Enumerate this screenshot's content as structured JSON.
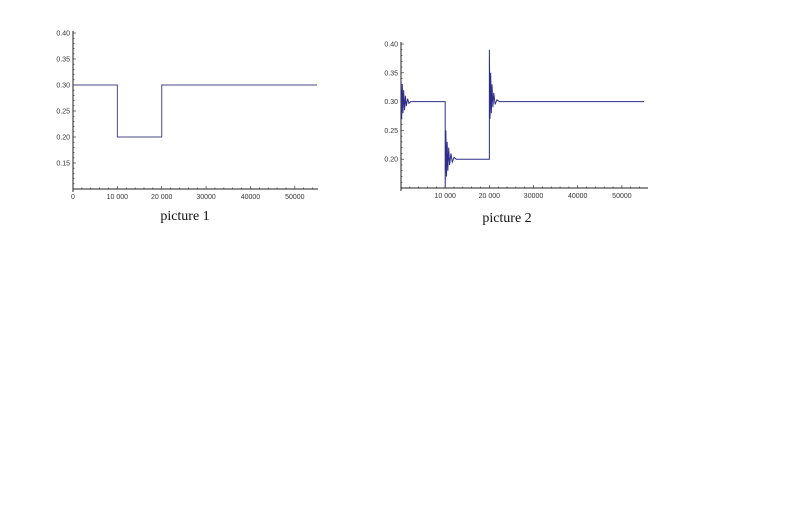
{
  "chart_data": [
    {
      "type": "line",
      "caption": "picture 1",
      "xlim": [
        0,
        55000
      ],
      "ylim": [
        0.1,
        0.4
      ],
      "x_ticks": [
        0,
        10000,
        20000,
        30000,
        40000,
        50000
      ],
      "x_tick_labels": [
        "0",
        "10 000",
        "20 000",
        "30000",
        "40000",
        "50000"
      ],
      "y_ticks": [
        0.15,
        0.2,
        0.25,
        0.3,
        0.35,
        0.4
      ],
      "y_tick_labels": [
        "0.15",
        "0.20",
        "0.25",
        "0.30",
        "0.35",
        "0.40"
      ],
      "grid": false,
      "line_color": "#4a4a86",
      "points": [
        [
          0,
          0.3
        ],
        [
          10000,
          0.3
        ],
        [
          10000,
          0.2
        ],
        [
          20000,
          0.2
        ],
        [
          20000,
          0.3
        ],
        [
          55000,
          0.3
        ]
      ]
    },
    {
      "type": "line",
      "caption": "picture 2",
      "xlim": [
        0,
        55000
      ],
      "ylim": [
        0.15,
        0.4
      ],
      "x_ticks": [
        10000,
        20000,
        30000,
        40000,
        50000
      ],
      "x_tick_labels": [
        "10 000",
        "20 000",
        "30000",
        "40000",
        "50000"
      ],
      "y_ticks": [
        0.2,
        0.25,
        0.3,
        0.35,
        0.4
      ],
      "y_tick_labels": [
        "0.20",
        "0.25",
        "0.30",
        "0.35",
        "0.40"
      ],
      "grid": false,
      "line_color": "#2e2e8a",
      "points": [
        [
          0,
          0.34
        ],
        [
          150,
          0.27
        ],
        [
          300,
          0.33
        ],
        [
          450,
          0.28
        ],
        [
          600,
          0.32
        ],
        [
          800,
          0.285
        ],
        [
          1000,
          0.31
        ],
        [
          1200,
          0.292
        ],
        [
          1500,
          0.305
        ],
        [
          1800,
          0.297
        ],
        [
          2200,
          0.3
        ],
        [
          10000,
          0.3
        ],
        [
          10000,
          0.15
        ],
        [
          10150,
          0.25
        ],
        [
          10300,
          0.17
        ],
        [
          10450,
          0.23
        ],
        [
          10600,
          0.18
        ],
        [
          10800,
          0.22
        ],
        [
          11000,
          0.19
        ],
        [
          11300,
          0.21
        ],
        [
          11600,
          0.195
        ],
        [
          12000,
          0.203
        ],
        [
          12500,
          0.2
        ],
        [
          20000,
          0.2
        ],
        [
          20000,
          0.39
        ],
        [
          20150,
          0.27
        ],
        [
          20300,
          0.35
        ],
        [
          20450,
          0.28
        ],
        [
          20600,
          0.33
        ],
        [
          20800,
          0.29
        ],
        [
          21000,
          0.315
        ],
        [
          21300,
          0.295
        ],
        [
          21700,
          0.303
        ],
        [
          22300,
          0.3
        ],
        [
          55000,
          0.3
        ]
      ]
    }
  ]
}
